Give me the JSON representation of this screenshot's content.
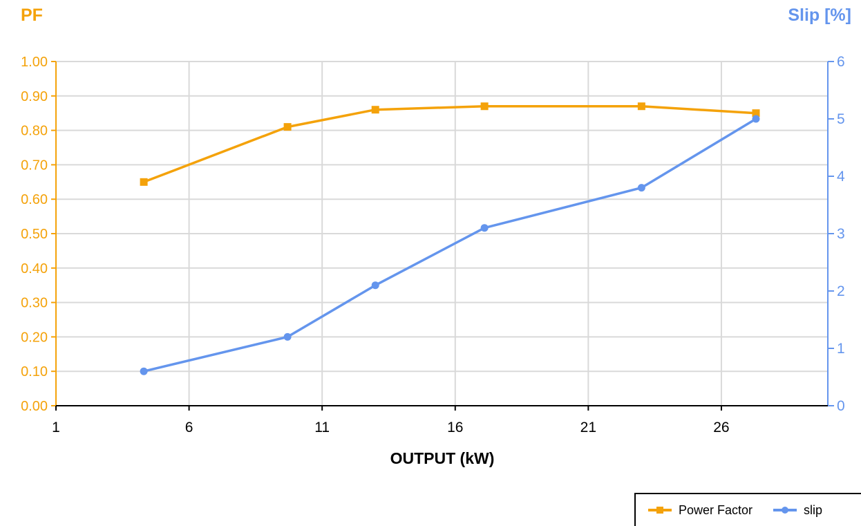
{
  "chart_data": {
    "type": "line",
    "title": "",
    "xlabel": "OUTPUT (kW)",
    "ylabel_left": "PF",
    "ylabel_right": "Slip [%]",
    "xlim": [
      1,
      30
    ],
    "x_ticks": [
      1,
      6,
      11,
      16,
      21,
      26
    ],
    "y_left_lim": [
      0,
      1
    ],
    "y_left_ticks": [
      "0.00",
      "0.10",
      "0.20",
      "0.30",
      "0.40",
      "0.50",
      "0.60",
      "0.70",
      "0.80",
      "0.90",
      "1.00"
    ],
    "y_right_lim": [
      0,
      6
    ],
    "y_right_ticks": [
      "0",
      "1",
      "2",
      "3",
      "4",
      "5",
      "6"
    ],
    "grid": true,
    "legend_position": "bottom-right",
    "series": [
      {
        "name": "Power Factor",
        "axis": "left",
        "color": "#f4a20a",
        "marker": "square",
        "x": [
          4.3,
          9.7,
          13.0,
          17.1,
          23.0,
          27.3
        ],
        "values": [
          0.65,
          0.81,
          0.86,
          0.87,
          0.87,
          0.85
        ]
      },
      {
        "name": "slip",
        "axis": "right",
        "color": "#6495ed",
        "marker": "circle",
        "x": [
          4.3,
          9.7,
          13.0,
          17.1,
          23.0,
          27.3
        ],
        "values": [
          0.6,
          1.2,
          2.1,
          3.1,
          3.8,
          5.0
        ]
      }
    ]
  }
}
